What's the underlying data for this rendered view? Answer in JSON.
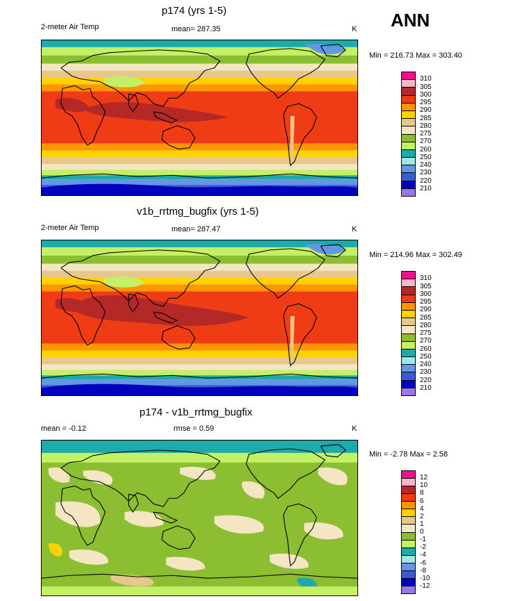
{
  "season": "ANN",
  "panels": [
    {
      "title": "p174 (yrs 1-5)",
      "variable": "2-meter Air Temp",
      "stat": "mean= 287.35",
      "stat2": "",
      "units": "K",
      "minmax": "Min = 216.73 Max = 303.40"
    },
    {
      "title": "v1b_rrtmg_bugfix (yrs 1-5)",
      "variable": "2-meter Air Temp",
      "stat": "mean= 287.47",
      "stat2": "",
      "units": "K",
      "minmax": "Min = 214.96 Max = 302.49"
    },
    {
      "title": "p174 - v1b_rrtmg_bugfix",
      "variable": "",
      "stat": "mean =  -0.12",
      "stat2": "rmse =   0.59",
      "units": "K",
      "minmax": "Min =  -2.78 Max =   2.58"
    }
  ],
  "colorbar_abs": {
    "labels": [
      "310",
      "305",
      "300",
      "295",
      "290",
      "285",
      "280",
      "275",
      "270",
      "260",
      "250",
      "240",
      "230",
      "220",
      "210"
    ],
    "colors": [
      "#f0108c",
      "#f8b4c8",
      "#b42828",
      "#f03c14",
      "#ff9600",
      "#ffd200",
      "#e6c88c",
      "#f5e6c3",
      "#8cbe32",
      "#c3f064",
      "#1eaaaa",
      "#a0e6e6",
      "#6496e6",
      "#3c5ad2",
      "#0000be",
      "#9678e6"
    ]
  },
  "colorbar_diff": {
    "labels": [
      "12",
      "10",
      "8",
      "6",
      "4",
      "2",
      "1",
      "0",
      "-1",
      "-2",
      "-4",
      "-6",
      "-8",
      "-10",
      "-12"
    ],
    "colors": [
      "#f0108c",
      "#f8b4c8",
      "#b42828",
      "#f03c14",
      "#ff9600",
      "#ffd200",
      "#e6c88c",
      "#f5e6c3",
      "#8cbe32",
      "#c3f064",
      "#1eaaaa",
      "#a0e6e6",
      "#6496e6",
      "#3c5ad2",
      "#0000be",
      "#9678e6"
    ]
  },
  "map_colors": {
    "cold_deep": "#0000be",
    "cold": "#3c5ad2",
    "cool": "#6496e6",
    "teal": "#1eaaaa",
    "lightgreen": "#c3f064",
    "green": "#8cbe32",
    "beige": "#f5e6c3",
    "tan": "#e6c88c",
    "yellow": "#ffd200",
    "orange": "#ff9600",
    "red": "#f03c14",
    "darkred": "#b42828",
    "pink": "#f8b4c8"
  }
}
